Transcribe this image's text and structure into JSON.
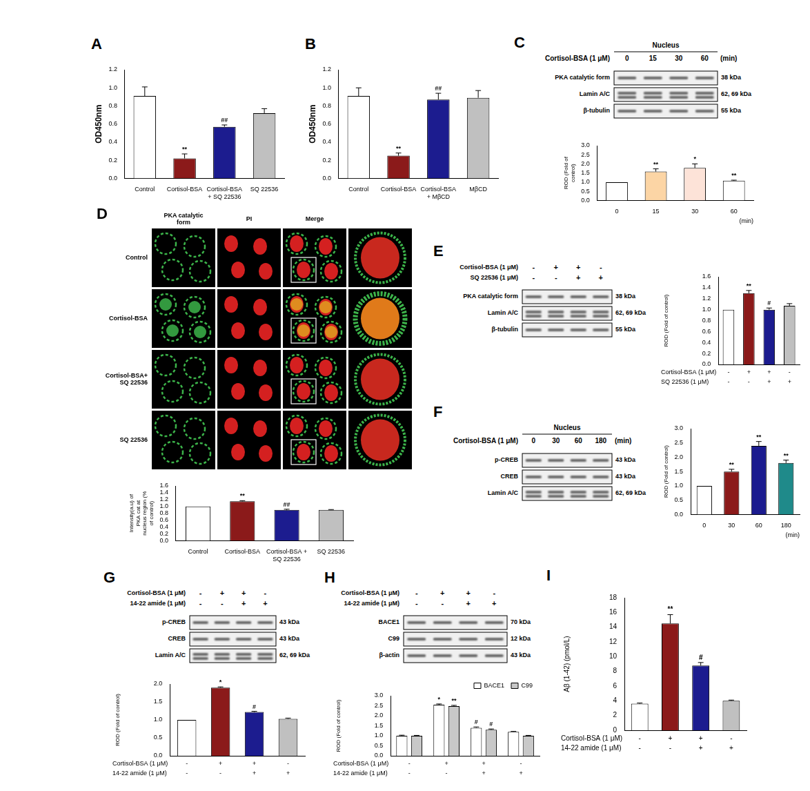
{
  "chart_data": [
    {
      "panel": "A",
      "type": "bar",
      "categories": [
        "Control",
        "Cortisol-BSA",
        "Cortisol-BSA + SQ 22536",
        "SQ 22536"
      ],
      "values": [
        0.91,
        0.22,
        0.57,
        0.72
      ],
      "errors": [
        0.1,
        0.05,
        0.02,
        0.05
      ],
      "significance": [
        null,
        "**",
        "##",
        null
      ],
      "colors": [
        "#ffffff",
        "#8b1a1a",
        "#1c1c8f",
        "#c0c0c0"
      ],
      "y_label": "OD450nm",
      "ylim": [
        0,
        1.2
      ],
      "yticks": [
        {
          "value": 0,
          "label": "0.0"
        },
        0.2,
        0.4,
        0.6,
        0.8,
        {
          "value": 1,
          "label": "1.0"
        },
        1.2
      ],
      "grid": false
    },
    {
      "panel": "B",
      "type": "bar",
      "categories": [
        "Control",
        "Cortisol-BSA",
        "Cortisol-BSA + MβCD",
        "MβCD"
      ],
      "values": [
        0.91,
        0.25,
        0.87,
        0.89
      ],
      "errors": [
        0.09,
        0.03,
        0.07,
        0.08
      ],
      "significance": [
        null,
        "**",
        "##",
        null
      ],
      "colors": [
        "#ffffff",
        "#8b1a1a",
        "#1c1c8f",
        "#c0c0c0"
      ],
      "y_label": "OD450nm",
      "ylim": [
        0,
        1.2
      ],
      "yticks": [
        {
          "value": 0,
          "label": "0.0"
        },
        0.2,
        0.4,
        0.6,
        0.8,
        {
          "value": 1,
          "label": "1.0"
        },
        1.2
      ],
      "grid": false
    },
    {
      "type": "bar",
      "categories": [
        "0",
        "15",
        "30",
        "60"
      ],
      "x_label": "(min)",
      "values": [
        1,
        1.58,
        1.78,
        1.08
      ],
      "errors": [
        0,
        0.15,
        0.22,
        0.03
      ],
      "significance": [
        null,
        "**",
        "*",
        "**"
      ],
      "colors": [
        "#ffffff",
        "#fcd5a5",
        "#fde3d8",
        "#ffffff"
      ],
      "y_label": "ROD (Fold of control)",
      "ylim": [
        0,
        3
      ],
      "yticks": [
        {
          "value": 0,
          "label": "0.0"
        },
        0.5,
        {
          "value": 1,
          "label": "1.0"
        },
        1.5,
        {
          "value": 2,
          "label": "2.0"
        },
        2.5,
        {
          "value": 3,
          "label": "3.0"
        }
      ],
      "grid": false
    },
    {
      "type": "bar",
      "categories": [
        "Control",
        "Cortisol-BSA",
        "Cortisol-BSA + SQ 22536",
        "SQ 22536"
      ],
      "values": [
        1,
        1.15,
        0.9,
        0.9
      ],
      "errors": [
        0,
        0.02,
        0.02,
        0.01
      ],
      "significance": [
        null,
        "**",
        "##",
        null
      ],
      "colors": [
        "#ffffff",
        "#8b1a1a",
        "#1c1c8f",
        "#c0c0c0"
      ],
      "y_label": "Intensity(a.u) of PKA cat at nucleus region (% of control)",
      "ylim": [
        0,
        1.6
      ],
      "yticks": [
        {
          "value": 0,
          "label": "0.0"
        },
        0.2,
        0.4,
        0.6,
        0.8,
        {
          "value": 1,
          "label": "1.0"
        },
        1.2,
        1.4,
        1.6
      ],
      "grid": false
    },
    {
      "type": "bar",
      "conditions": [
        {
          "name": "Cortisol-BSA (1 μM)",
          "signs": [
            "-",
            "+",
            "+",
            "-"
          ]
        },
        {
          "name": "SQ 22536 (1 μM)",
          "signs": [
            "-",
            "-",
            "+",
            "+"
          ]
        }
      ],
      "values": [
        1,
        1.3,
        1.0,
        1.07
      ],
      "errors": [
        0,
        0.05,
        0.03,
        0.04
      ],
      "significance": [
        null,
        "**",
        "#",
        null
      ],
      "colors": [
        "#ffffff",
        "#8b1a1a",
        "#1c1c8f",
        "#c0c0c0"
      ],
      "y_label": "ROD (Fold of control)",
      "ylim": [
        0,
        1.6
      ],
      "yticks": [
        {
          "value": 0,
          "label": "0.0"
        },
        0.2,
        0.4,
        0.6,
        0.8,
        {
          "value": 1,
          "label": "1.0"
        },
        1.2,
        1.4,
        1.6
      ],
      "grid": false
    },
    {
      "type": "bar",
      "categories": [
        "0",
        "30",
        "60",
        "180"
      ],
      "x_label": "(min)",
      "values": [
        1,
        1.5,
        2.4,
        1.8
      ],
      "errors": [
        0,
        0.08,
        0.15,
        0.1
      ],
      "significance": [
        null,
        "**",
        "**",
        "**"
      ],
      "colors": [
        "#ffffff",
        "#8b1a1a",
        "#1c1c8f",
        "#1f8a8a"
      ],
      "y_label": "ROD (Fold of control)",
      "ylim": [
        0,
        3
      ],
      "yticks": [
        {
          "value": 0,
          "label": "0.0"
        },
        0.5,
        {
          "value": 1,
          "label": "1.0"
        },
        1.5,
        {
          "value": 2,
          "label": "2.0"
        },
        2.5,
        {
          "value": 3,
          "label": "3.0"
        }
      ],
      "grid": false
    },
    {
      "type": "bar",
      "conditions": [
        {
          "name": "Cortisol-BSA (1 μM)",
          "signs": [
            "-",
            "+",
            "+",
            "-"
          ]
        },
        {
          "name": "14-22 amide (1 μM)",
          "signs": [
            "-",
            "-",
            "+",
            "+"
          ]
        }
      ],
      "values": [
        1,
        1.9,
        1.22,
        1.03
      ],
      "errors": [
        0,
        0.02,
        0.02,
        0.02
      ],
      "significance": [
        null,
        "*",
        "#",
        null
      ],
      "colors": [
        "#ffffff",
        "#8b1a1a",
        "#1c1c8f",
        "#c0c0c0"
      ],
      "y_label": "ROD (Fold of control)",
      "ylim": [
        0,
        2
      ],
      "yticks": [
        {
          "value": 0,
          "label": "0.0"
        },
        0.5,
        {
          "value": 1,
          "label": "1.0"
        },
        1.5,
        {
          "value": 2,
          "label": "2.0"
        }
      ],
      "grid": false
    },
    {
      "type": "bar",
      "conditions": [
        {
          "name": "Cortisol-BSA (1 μM)",
          "signs": [
            "-",
            "+",
            "+",
            "-"
          ]
        },
        {
          "name": "14-22 amide (1 μM)",
          "signs": [
            "-",
            "-",
            "+",
            "+"
          ]
        }
      ],
      "series": [
        {
          "name": "BACE1",
          "color": "#ffffff",
          "values": [
            1,
            2.55,
            1.4,
            1.2
          ],
          "errors": [
            0.03,
            0.04,
            0.04,
            0.02
          ],
          "significance": [
            null,
            "*",
            "#",
            null
          ]
        },
        {
          "name": "C99",
          "color": "#c8c8c8",
          "values": [
            1,
            2.48,
            1.3,
            1.0
          ],
          "errors": [
            0.02,
            0.04,
            0.04,
            0.02
          ],
          "significance": [
            null,
            "**",
            "#",
            null
          ]
        }
      ],
      "legend": "upper right",
      "y_label": "ROD (Fold of control)",
      "ylim": [
        0,
        3
      ],
      "yticks": [
        {
          "value": 0,
          "label": "0.0"
        },
        0.5,
        {
          "value": 1,
          "label": "1.0"
        },
        1.5,
        {
          "value": 2,
          "label": "2.0"
        },
        2.5,
        {
          "value": 3,
          "label": "3.0"
        }
      ],
      "grid": false
    },
    {
      "panel": "I",
      "type": "bar",
      "conditions": [
        {
          "name": "Cortisol-BSA (1 μM)",
          "signs": [
            "-",
            "+",
            "+",
            "-"
          ]
        },
        {
          "name": "14-22 amide (1 μM)",
          "signs": [
            "-",
            "-",
            "+",
            "+"
          ]
        }
      ],
      "values": [
        3.6,
        14.5,
        8.8,
        4.0
      ],
      "errors": [
        0.1,
        1.2,
        0.4,
        0.1
      ],
      "significance": [
        null,
        "**",
        "#",
        null
      ],
      "colors": [
        "#ffffff",
        "#8b1a1a",
        "#1c1c8f",
        "#c0c0c0"
      ],
      "y_label": "Aβ (1-42) (pmol/L)",
      "ylim": [
        0,
        18
      ],
      "yticks": [
        0,
        2,
        4,
        6,
        8,
        10,
        12,
        14,
        16,
        18
      ],
      "grid": false
    }
  ],
  "blots": [
    {
      "panel": "C",
      "header": "Nucleus",
      "treatment": "Cortisol-BSA (1 μM)",
      "lanes": [
        "0",
        "15",
        "30",
        "60"
      ],
      "lane_unit": "(min)",
      "rows": [
        {
          "label": "PKA catalytic form",
          "size": "38 kDa"
        },
        {
          "label": "Lamin A/C",
          "size": "62, 69 kDa"
        },
        {
          "label": "β-tubulin",
          "size": "55 kDa"
        }
      ]
    },
    {
      "panel": "E",
      "conditions": [
        {
          "name": "Cortisol-BSA (1 μM)",
          "signs": [
            "-",
            "+",
            "+",
            "-"
          ]
        },
        {
          "name": "SQ 22536 (1 μM)",
          "signs": [
            "-",
            "-",
            "+",
            "+"
          ]
        }
      ],
      "rows": [
        {
          "label": "PKA catalytic form",
          "size": "38 kDa"
        },
        {
          "label": "Lamin A/C",
          "size": "62, 69 kDa"
        },
        {
          "label": "β-tubulin",
          "size": "55 kDa"
        }
      ]
    },
    {
      "panel": "F",
      "header": "Nucleus",
      "treatment": "Cortisol-BSA (1 μM)",
      "lanes": [
        "0",
        "30",
        "60",
        "180"
      ],
      "lane_unit": "(min)",
      "rows": [
        {
          "label": "p-CREB",
          "size": "43 kDa"
        },
        {
          "label": "CREB",
          "size": "43 kDa"
        },
        {
          "label": "Lamin A/C",
          "size": "62, 69 kDa"
        }
      ]
    },
    {
      "panel": "G",
      "conditions": [
        {
          "name": "Cortisol-BSA (1 μM)",
          "signs": [
            "-",
            "+",
            "+",
            "-"
          ]
        },
        {
          "name": "14-22 amide (1 μM)",
          "signs": [
            "-",
            "-",
            "+",
            "+"
          ]
        }
      ],
      "rows": [
        {
          "label": "p-CREB",
          "size": "43 kDa"
        },
        {
          "label": "CREB",
          "size": "43 kDa"
        },
        {
          "label": "Lamin A/C",
          "size": "62, 69 kDa"
        }
      ]
    },
    {
      "panel": "H",
      "conditions": [
        {
          "name": "Cortisol-BSA (1 μM)",
          "signs": [
            "-",
            "+",
            "+",
            "-"
          ]
        },
        {
          "name": "14-22 amide (1 μM)",
          "signs": [
            "-",
            "-",
            "+",
            "+"
          ]
        }
      ],
      "rows": [
        {
          "label": "BACE1",
          "size": "70 kDa"
        },
        {
          "label": "C99",
          "size": "12 kDa"
        },
        {
          "label": "β-actin",
          "size": "43 kDa"
        }
      ]
    }
  ],
  "images": {
    "panel": "D",
    "columns": [
      "PKA catalytic form",
      "PI",
      "Merge"
    ],
    "rows": [
      "Control",
      "Cortisol-BSA",
      "Cortisol-BSA+ SQ 22536",
      "SQ 22536"
    ]
  }
}
